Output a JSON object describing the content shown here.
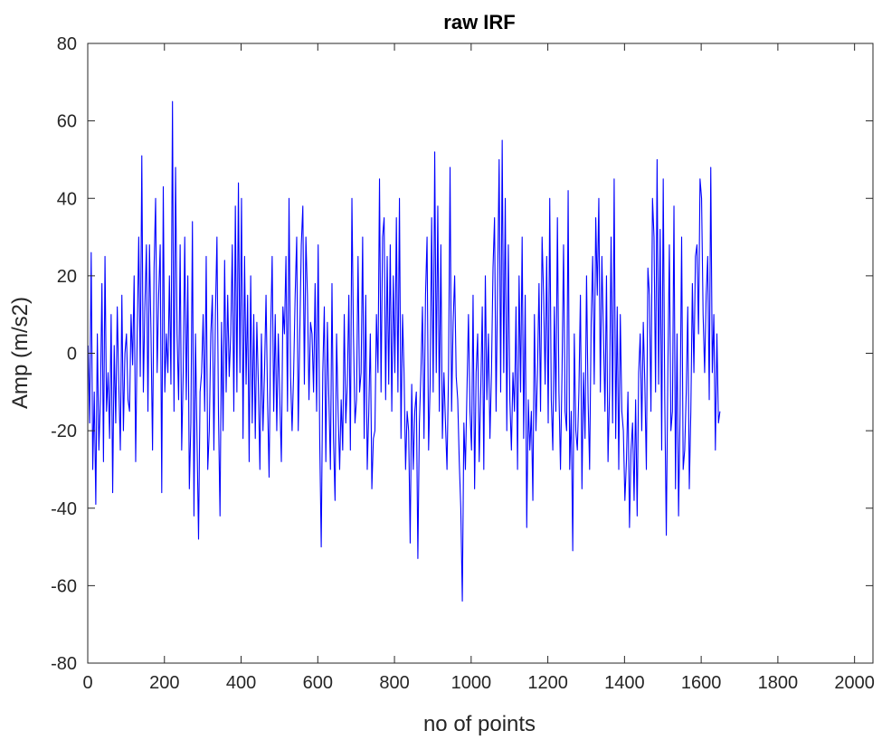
{
  "chart_data": {
    "type": "line",
    "title": "raw IRF",
    "xlabel": "no of points",
    "ylabel": "Amp (m/s2)",
    "xlim": [
      0,
      2048
    ],
    "ylim": [
      -80,
      80
    ],
    "x_ticks": [
      0,
      200,
      400,
      600,
      800,
      1000,
      1200,
      1400,
      1600,
      1800,
      2000
    ],
    "y_ticks": [
      -80,
      -60,
      -40,
      -20,
      0,
      20,
      40,
      60,
      80
    ],
    "x_tick_labels": [
      "0",
      "200",
      "400",
      "600",
      "800",
      "1000",
      "1200",
      "1400",
      "1600",
      "1800",
      "2000"
    ],
    "y_tick_labels": [
      "-80",
      "-60",
      "-40",
      "-20",
      "0",
      "20",
      "40",
      "60",
      "80"
    ],
    "grid": false,
    "box": true,
    "series": [
      {
        "color": "#0000ff",
        "x_start": 1,
        "x_step": 4,
        "values": [
          2,
          -18,
          26,
          -30,
          -10,
          -39,
          5,
          -25,
          -12,
          18,
          -28,
          25,
          -15,
          -5,
          -22,
          10,
          -36,
          2,
          -18,
          12,
          -8,
          -25,
          15,
          -20,
          0,
          5,
          -12,
          -15,
          10,
          -3,
          20,
          -28,
          5,
          30,
          -6,
          51,
          -10,
          12,
          28,
          -15,
          28,
          5,
          -25,
          22,
          40,
          -5,
          15,
          28,
          -36,
          43,
          -10,
          5,
          -5,
          20,
          -8,
          65,
          -15,
          48,
          5,
          -12,
          28,
          -25,
          -5,
          30,
          -12,
          20,
          -35,
          -18,
          34,
          -42,
          5,
          -22,
          -48,
          -10,
          -5,
          10,
          -15,
          25,
          -30,
          -20,
          5,
          15,
          -25,
          10,
          30,
          -16,
          -42,
          8,
          -20,
          24,
          -10,
          15,
          -6,
          5,
          28,
          -15,
          38,
          -10,
          44,
          -5,
          40,
          -22,
          25,
          -8,
          15,
          -28,
          20,
          -18,
          10,
          -22,
          8,
          -8,
          -30,
          5,
          -20,
          -5,
          15,
          -12,
          -32,
          5,
          25,
          -15,
          10,
          -20,
          5,
          -12,
          -28,
          12,
          5,
          25,
          -15,
          40,
          -6,
          -20,
          -5,
          15,
          30,
          -20,
          5,
          28,
          38,
          -8,
          30,
          15,
          -12,
          8,
          5,
          -10,
          18,
          -15,
          28,
          -22,
          -50,
          -5,
          12,
          -28,
          8,
          -12,
          -30,
          18,
          -22,
          -38,
          5,
          -15,
          -30,
          -12,
          -25,
          10,
          -18,
          -8,
          15,
          -25,
          40,
          5,
          -18,
          -12,
          25,
          -10,
          -5,
          30,
          -22,
          15,
          -30,
          -15,
          5,
          -35,
          -22,
          -20,
          10,
          -5,
          45,
          -10,
          30,
          35,
          -12,
          25,
          -8,
          28,
          -15,
          20,
          -5,
          35,
          -10,
          40,
          -22,
          10,
          -5,
          -30,
          -15,
          -20,
          -49,
          -8,
          -30,
          -15,
          -10,
          -53,
          -18,
          -5,
          12,
          -22,
          15,
          30,
          -25,
          -8,
          35,
          -10,
          52,
          -5,
          38,
          -15,
          28,
          -22,
          -5,
          -18,
          -30,
          -5,
          48,
          -15,
          8,
          20,
          -6,
          -12,
          -28,
          -40,
          -64,
          -18,
          -30,
          -10,
          10,
          -15,
          -25,
          15,
          -35,
          -5,
          5,
          -28,
          -10,
          12,
          -30,
          20,
          -12,
          5,
          -22,
          -5,
          22,
          35,
          -15,
          18,
          50,
          -10,
          55,
          -5,
          40,
          -20,
          28,
          -12,
          -25,
          -5,
          -15,
          12,
          -30,
          20,
          -10,
          30,
          -22,
          15,
          -45,
          -12,
          -25,
          -15,
          -38,
          10,
          -20,
          -5,
          18,
          -15,
          30,
          15,
          -8,
          25,
          -18,
          40,
          -12,
          -25,
          12,
          -15,
          35,
          -10,
          -30,
          -5,
          28,
          -15,
          -20,
          42,
          -30,
          -15,
          -51,
          5,
          -20,
          -25,
          -10,
          15,
          -35,
          -5,
          -22,
          20,
          -12,
          -30,
          8,
          25,
          -8,
          35,
          15,
          40,
          -10,
          25,
          5,
          -15,
          20,
          -28,
          -10,
          30,
          -18,
          45,
          -22,
          12,
          -30,
          10,
          -15,
          -20,
          -38,
          -28,
          -10,
          -45,
          -25,
          -18,
          -38,
          -12,
          -42,
          -5,
          5,
          -20,
          8,
          -8,
          -30,
          22,
          15,
          -15,
          40,
          30,
          -10,
          50,
          -8,
          32,
          -25,
          45,
          -12,
          -47,
          -5,
          28,
          -20,
          -15,
          38,
          -35,
          5,
          -42,
          -15,
          30,
          -30,
          -25,
          -10,
          12,
          -35,
          -15,
          18,
          -5,
          25,
          28,
          5,
          45,
          40,
          10,
          -5,
          15,
          25,
          -12,
          48,
          -5,
          10,
          -25,
          5,
          -18,
          -15
        ]
      }
    ]
  }
}
